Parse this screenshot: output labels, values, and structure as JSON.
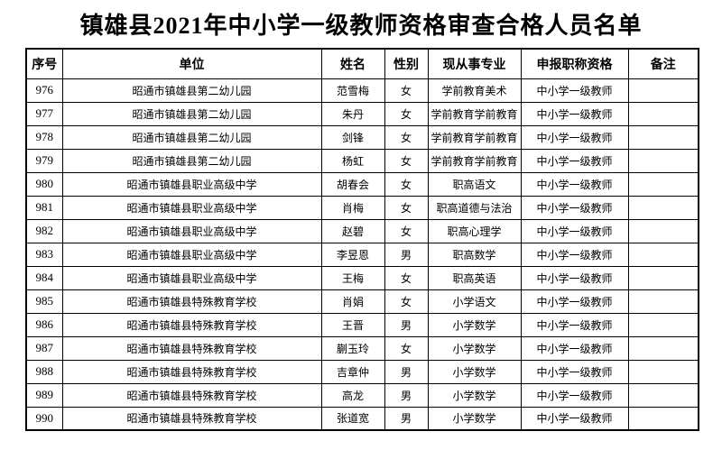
{
  "title": "镇雄县2021年中小学一级教师资格审查合格人员名单",
  "colors": {
    "background": "#ffffff",
    "text": "#000000",
    "border": "#000000"
  },
  "table": {
    "columns": [
      {
        "key": "index",
        "label": "序号"
      },
      {
        "key": "unit",
        "label": "单位"
      },
      {
        "key": "name",
        "label": "姓名"
      },
      {
        "key": "gender",
        "label": "性别"
      },
      {
        "key": "major",
        "label": "现从事专业"
      },
      {
        "key": "qual",
        "label": "申报职称资格"
      },
      {
        "key": "remark",
        "label": "备注"
      }
    ],
    "rows": [
      [
        "976",
        "昭通市镇雄县第二幼儿园",
        "范雪梅",
        "女",
        "学前教育美术",
        "中小学一级教师",
        ""
      ],
      [
        "977",
        "昭通市镇雄县第二幼儿园",
        "朱丹",
        "女",
        "学前教育学前教育",
        "中小学一级教师",
        ""
      ],
      [
        "978",
        "昭通市镇雄县第二幼儿园",
        "剑锋",
        "女",
        "学前教育学前教育",
        "中小学一级教师",
        ""
      ],
      [
        "979",
        "昭通市镇雄县第二幼儿园",
        "杨虹",
        "女",
        "学前教育学前教育",
        "中小学一级教师",
        ""
      ],
      [
        "980",
        "昭通市镇雄县职业高级中学",
        "胡春会",
        "女",
        "职高语文",
        "中小学一级教师",
        ""
      ],
      [
        "981",
        "昭通市镇雄县职业高级中学",
        "肖梅",
        "女",
        "职高道德与法治",
        "中小学一级教师",
        ""
      ],
      [
        "982",
        "昭通市镇雄县职业高级中学",
        "赵碧",
        "女",
        "职高心理学",
        "中小学一级教师",
        ""
      ],
      [
        "983",
        "昭通市镇雄县职业高级中学",
        "李昱恩",
        "男",
        "职高数学",
        "中小学一级教师",
        ""
      ],
      [
        "984",
        "昭通市镇雄县职业高级中学",
        "王梅",
        "女",
        "职高英语",
        "中小学一级教师",
        ""
      ],
      [
        "985",
        "昭通市镇雄县特殊教育学校",
        "肖娟",
        "女",
        "小学语文",
        "中小学一级教师",
        ""
      ],
      [
        "986",
        "昭通市镇雄县特殊教育学校",
        "王晋",
        "男",
        "小学数学",
        "中小学一级教师",
        ""
      ],
      [
        "987",
        "昭通市镇雄县特殊教育学校",
        "蒯玉玲",
        "女",
        "小学数学",
        "中小学一级教师",
        ""
      ],
      [
        "988",
        "昭通市镇雄县特殊教育学校",
        "吉章仲",
        "男",
        "小学数学",
        "中小学一级教师",
        ""
      ],
      [
        "989",
        "昭通市镇雄县特殊教育学校",
        "高龙",
        "男",
        "小学数学",
        "中小学一级教师",
        ""
      ],
      [
        "990",
        "昭通市镇雄县特殊教育学校",
        "张道宽",
        "男",
        "小学数学",
        "中小学一级教师",
        ""
      ]
    ]
  }
}
